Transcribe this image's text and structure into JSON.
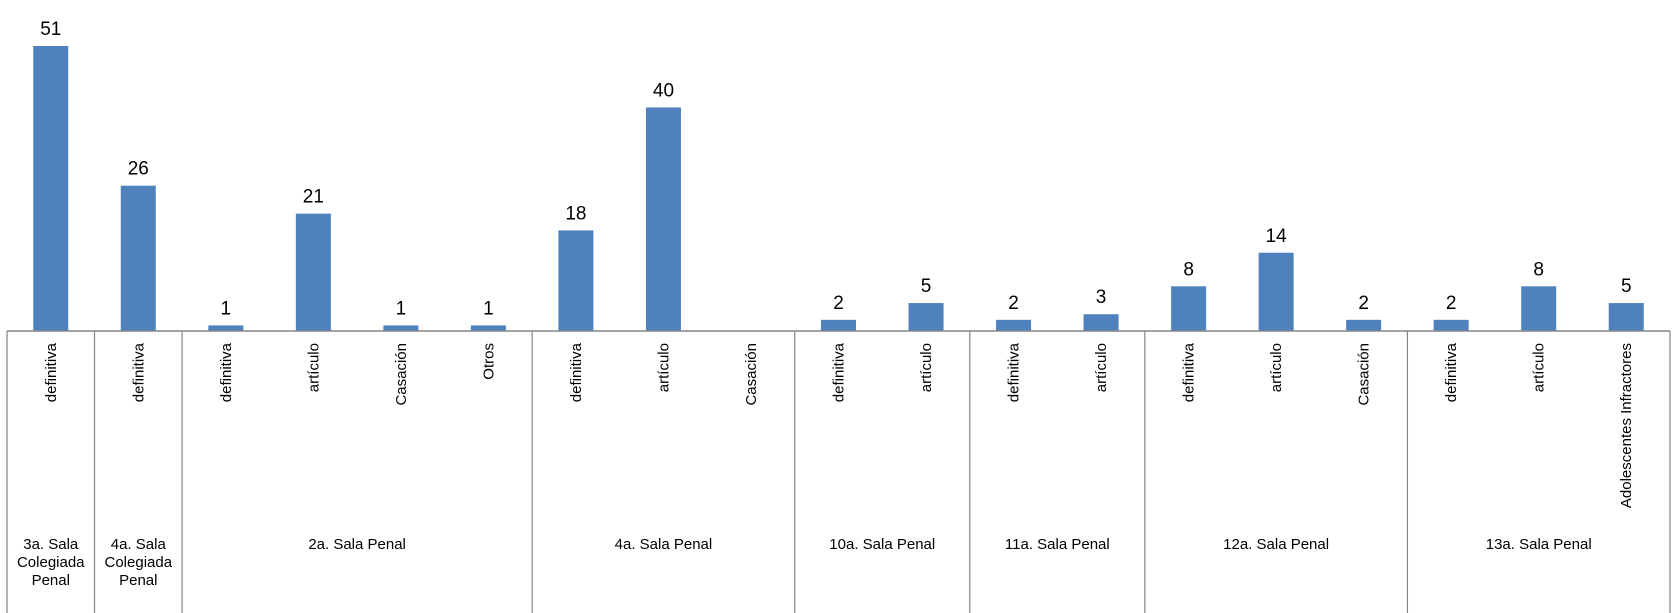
{
  "chart_data": {
    "type": "bar",
    "title": "",
    "xlabel": "",
    "ylabel": "",
    "ylim": [
      0,
      51
    ],
    "color": "#4F81BD",
    "axis_color": "#868686",
    "categories": [
      {
        "label": "definitiva",
        "group": 0,
        "value": 51
      },
      {
        "label": "definitiva",
        "group": 1,
        "value": 26
      },
      {
        "label": "definitiva",
        "group": 2,
        "value": 1
      },
      {
        "label": "artículo",
        "group": 2,
        "value": 21
      },
      {
        "label": "Casación",
        "group": 2,
        "value": 1
      },
      {
        "label": "Otros",
        "group": 2,
        "value": 1
      },
      {
        "label": "definitiva",
        "group": 3,
        "value": 18
      },
      {
        "label": "artículo",
        "group": 3,
        "value": 40
      },
      {
        "label": "Casación",
        "group": 3,
        "value": null
      },
      {
        "label": "definitiva",
        "group": 4,
        "value": 2
      },
      {
        "label": "artículo",
        "group": 4,
        "value": 5
      },
      {
        "label": "definitiva",
        "group": 5,
        "value": 2
      },
      {
        "label": "artículo",
        "group": 5,
        "value": 3
      },
      {
        "label": "definitiva",
        "group": 6,
        "value": 8
      },
      {
        "label": "artículo",
        "group": 6,
        "value": 14
      },
      {
        "label": "Casación",
        "group": 6,
        "value": 2
      },
      {
        "label": "definitiva",
        "group": 7,
        "value": 2
      },
      {
        "label": "artículo",
        "group": 7,
        "value": 8
      },
      {
        "label": "Adolescentes Infractores",
        "group": 7,
        "value": 5
      }
    ],
    "groups": [
      {
        "label": [
          "3a. Sala",
          "Colegiada",
          "Penal"
        ]
      },
      {
        "label": [
          "4a. Sala",
          "Colegiada",
          "Penal"
        ]
      },
      {
        "label": [
          "2a. Sala Penal"
        ]
      },
      {
        "label": [
          "4a. Sala Penal"
        ]
      },
      {
        "label": [
          "10a. Sala Penal"
        ]
      },
      {
        "label": [
          "11a. Sala Penal"
        ]
      },
      {
        "label": [
          "12a. Sala Penal"
        ]
      },
      {
        "label": [
          "13a. Sala Penal"
        ]
      }
    ]
  }
}
